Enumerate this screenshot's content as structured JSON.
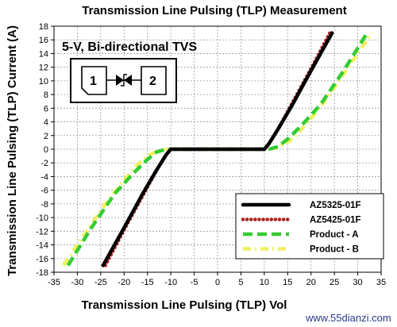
{
  "chart_data": {
    "type": "line",
    "title": "Transmission Line Pulsing (TLP) Measurement",
    "subtitle": "5-V, Bi-directional TVS",
    "xlabel": "Transmission Line Pulsing (TLP) Vol",
    "ylabel": "Transmission Line Pulsing (TLP) Current (A)",
    "xlim": [
      -35,
      35
    ],
    "ylim": [
      -18,
      18
    ],
    "xticks": [
      -35,
      -30,
      -25,
      -20,
      -15,
      -10,
      -5,
      0,
      5,
      10,
      15,
      20,
      25,
      30,
      35
    ],
    "yticks": [
      -18,
      -16,
      -14,
      -12,
      -10,
      -8,
      -6,
      -4,
      -2,
      0,
      2,
      4,
      6,
      8,
      10,
      12,
      14,
      16,
      18
    ],
    "grid": true,
    "legend_position": "bottom-right",
    "device_symbol": {
      "pin1": "1",
      "pin2": "2"
    },
    "watermark": "www.55dianzi.com",
    "series": [
      {
        "name": "AZ5325-01F",
        "color": "#000000",
        "style": "solid",
        "x": [
          -24.5,
          -20,
          -16,
          -13,
          -11,
          -10,
          -5,
          0,
          5,
          10,
          11,
          13,
          16,
          20,
          24.5
        ],
        "y": [
          -17,
          -11.5,
          -6.5,
          -3,
          -0.8,
          0,
          0,
          0,
          0,
          0,
          0.8,
          3,
          6.5,
          11.5,
          17
        ]
      },
      {
        "name": "AZ5425-01F",
        "color": "#b22222",
        "style": "dotted",
        "x": [
          -24,
          -20,
          -16,
          -13,
          -11,
          -10,
          -5,
          0,
          5,
          10,
          11,
          13,
          16,
          20,
          24
        ],
        "y": [
          -17,
          -11.8,
          -6.8,
          -3,
          -0.8,
          0,
          0,
          0,
          0,
          0,
          0.8,
          3,
          6.8,
          11.8,
          17
        ]
      },
      {
        "name": "Product - A",
        "color": "#33cc33",
        "style": "dashed",
        "x": [
          -32,
          -27,
          -22,
          -18,
          -15,
          -13,
          -11,
          -5,
          0,
          5,
          11,
          13,
          15,
          18,
          22,
          27,
          32
        ],
        "y": [
          -17,
          -11.5,
          -6.5,
          -3.5,
          -1.5,
          -0.4,
          0,
          0,
          0,
          0,
          0,
          0.4,
          1.5,
          3.5,
          6.5,
          11.5,
          17
        ]
      },
      {
        "name": "Product - B",
        "color": "#f0f060",
        "style": "dashdot",
        "x": [
          -33,
          -28,
          -24,
          -20,
          -17,
          -15,
          -13,
          -11,
          -5,
          0,
          5,
          11,
          13,
          15,
          17,
          20,
          24,
          28,
          33
        ],
        "y": [
          -17,
          -12,
          -8,
          -4.5,
          -2.2,
          -1,
          -0.3,
          0,
          0,
          0,
          0,
          0,
          0.3,
          1,
          2.2,
          4.5,
          8,
          12,
          17
        ]
      }
    ]
  }
}
